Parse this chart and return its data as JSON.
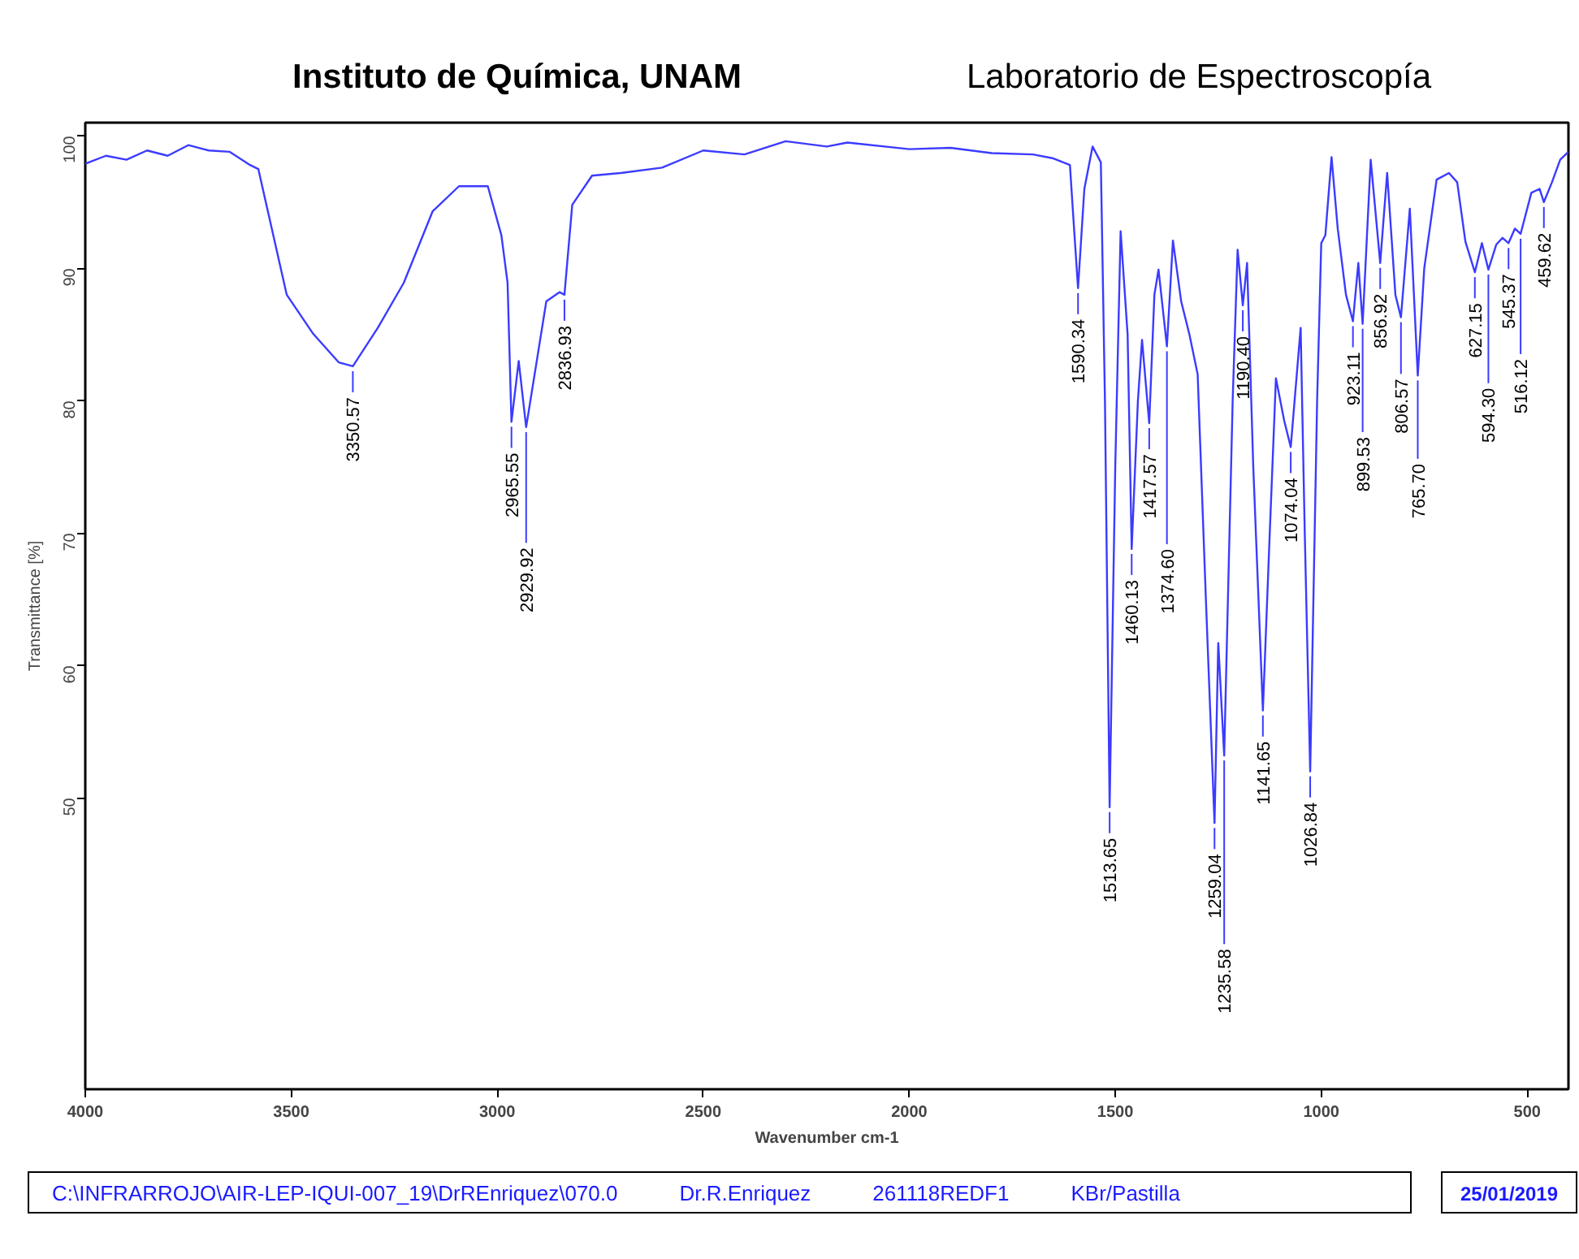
{
  "chart_data": {
    "type": "line",
    "title": "Instituto de Química, UNAM",
    "subtitle": "Laboratorio de Espectroscopía",
    "xlabel": "Wavenumber cm-1",
    "ylabel": "Transmittance [%]",
    "xlim": [
      4000,
      400
    ],
    "ylim": [
      28,
      101
    ],
    "xticks": [
      4000,
      3500,
      3000,
      2500,
      2000,
      1500,
      1000,
      500
    ],
    "yticks": [
      50,
      60,
      70,
      80,
      90,
      100
    ],
    "grid": false,
    "marker": "none",
    "line_style": "solid",
    "series": [
      {
        "color": "#3b3bff",
        "x": [
          4000,
          3950,
          3900,
          3850,
          3800,
          3750,
          3700,
          3650,
          3600,
          3580,
          3511,
          3448,
          3385,
          3350.57,
          3290,
          3227,
          3157,
          3093,
          3023,
          2990,
          2975,
          2965.55,
          2948,
          2929.92,
          2881,
          2849,
          2836.93,
          2818,
          2770,
          2700,
          2600,
          2500,
          2400,
          2300,
          2200,
          2150,
          2000,
          1900,
          1800,
          1700,
          1650,
          1610,
          1600,
          1590.34,
          1575,
          1555,
          1535,
          1525,
          1513.65,
          1500,
          1487,
          1470,
          1460.13,
          1445,
          1435,
          1417.57,
          1405,
          1395,
          1374.6,
          1360,
          1340,
          1320,
          1300,
          1280,
          1259.04,
          1250,
          1235.58,
          1215,
          1203,
          1190.4,
          1180,
          1165,
          1141.65,
          1125,
          1110,
          1090,
          1074.04,
          1050,
          1040,
          1026.84,
          1010,
          1000,
          990,
          975,
          960,
          940,
          923.11,
          910,
          899.53,
          880,
          856.92,
          840,
          820,
          806.57,
          785,
          765.7,
          750,
          720,
          690,
          670,
          650,
          627.15,
          610,
          594.3,
          575,
          560,
          545.37,
          530,
          516.12,
          490,
          470,
          459.62,
          440,
          420,
          400
        ],
        "values": [
          97.9,
          98.5,
          98.2,
          98.9,
          98.5,
          99.3,
          98.9,
          98.8,
          97.8,
          97.5,
          88.0,
          85.1,
          82.9,
          82.6,
          85.5,
          88.9,
          94.3,
          96.2,
          96.2,
          92.5,
          88.9,
          78.4,
          83.0,
          78.0,
          87.5,
          88.2,
          88.0,
          94.8,
          97.0,
          97.2,
          97.6,
          98.9,
          98.6,
          99.6,
          99.2,
          99.5,
          99.0,
          99.1,
          98.7,
          98.6,
          98.3,
          97.8,
          93.0,
          88.5,
          96.0,
          99.2,
          98.0,
          80.0,
          49.3,
          75.0,
          92.8,
          85.0,
          68.8,
          80.0,
          84.6,
          78.3,
          88.0,
          89.9,
          84.1,
          92.1,
          87.5,
          85.0,
          82.0,
          65.0,
          48.1,
          61.7,
          53.2,
          80.0,
          91.4,
          87.2,
          90.4,
          75.0,
          56.6,
          70.0,
          81.7,
          78.5,
          76.5,
          85.5,
          70.0,
          52.0,
          80.0,
          91.9,
          92.5,
          98.4,
          93.0,
          88.0,
          86.0,
          90.4,
          85.8,
          98.2,
          90.4,
          97.2,
          88.0,
          86.3,
          94.5,
          81.9,
          90.0,
          96.7,
          97.2,
          96.5,
          92.0,
          89.7,
          91.9,
          89.9,
          91.8,
          92.3,
          91.9,
          93.0,
          92.6,
          95.7,
          96.0,
          95.0,
          96.5,
          98.2,
          98.8
        ]
      }
    ],
    "annotations": [
      {
        "text": "3350.57",
        "x": 3350.57,
        "y": 82.6
      },
      {
        "text": "2965.55",
        "x": 2965.55,
        "y": 78.4
      },
      {
        "text": "2929.92",
        "x": 2929.92,
        "y": 78.0
      },
      {
        "text": "2836.93",
        "x": 2836.93,
        "y": 88.0
      },
      {
        "text": "1590.34",
        "x": 1590.34,
        "y": 88.5
      },
      {
        "text": "1513.65",
        "x": 1513.65,
        "y": 49.3
      },
      {
        "text": "1460.13",
        "x": 1460.13,
        "y": 68.8
      },
      {
        "text": "1417.57",
        "x": 1417.57,
        "y": 78.3
      },
      {
        "text": "1374.60",
        "x": 1374.6,
        "y": 84.1
      },
      {
        "text": "1259.04",
        "x": 1259.04,
        "y": 48.1
      },
      {
        "text": "1235.58",
        "x": 1235.58,
        "y": 53.2
      },
      {
        "text": "1190.40",
        "x": 1190.4,
        "y": 87.2
      },
      {
        "text": "1141.65",
        "x": 1141.65,
        "y": 56.6
      },
      {
        "text": "1074.04",
        "x": 1074.04,
        "y": 76.5
      },
      {
        "text": "1026.84",
        "x": 1026.84,
        "y": 52.0
      },
      {
        "text": "923.11",
        "x": 923.11,
        "y": 86.0
      },
      {
        "text": "899.53",
        "x": 899.53,
        "y": 85.8
      },
      {
        "text": "856.92",
        "x": 856.92,
        "y": 90.4
      },
      {
        "text": "806.57",
        "x": 806.57,
        "y": 86.3
      },
      {
        "text": "765.70",
        "x": 765.7,
        "y": 81.9
      },
      {
        "text": "627.15",
        "x": 627.15,
        "y": 89.7
      },
      {
        "text": "594.30",
        "x": 594.3,
        "y": 89.9
      },
      {
        "text": "545.37",
        "x": 545.37,
        "y": 91.9
      },
      {
        "text": "516.12",
        "x": 516.12,
        "y": 92.6
      },
      {
        "text": "459.62",
        "x": 459.62,
        "y": 95.0
      },
      "C:\\INFRARROJO\\AIR-LEP-IQUI-007_19\\DrREnriquez\\070.0",
      "Dr.R.Enriquez",
      "261118REDF1",
      "KBr/Pastilla",
      "25/01/2019"
    ]
  }
}
